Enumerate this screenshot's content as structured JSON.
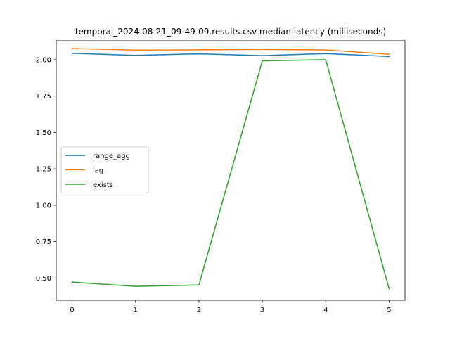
{
  "chart_data": {
    "type": "line",
    "title": "temporal_2024-08-21_09-49-09.results.csv median latency (milliseconds)",
    "xlabel": "",
    "ylabel": "",
    "x": [
      0,
      1,
      2,
      3,
      4,
      5
    ],
    "xticks": [
      "0",
      "1",
      "2",
      "3",
      "4",
      "5"
    ],
    "yticks": [
      "0.50",
      "0.75",
      "1.00",
      "1.25",
      "1.50",
      "1.75",
      "2.00"
    ],
    "xlim": [
      -0.25,
      5.25
    ],
    "ylim": [
      0.347,
      2.13
    ],
    "grid": false,
    "legend_position": "center-left",
    "series": [
      {
        "name": "range_agg",
        "color": "#1f77b4",
        "values": [
          2.044,
          2.03,
          2.04,
          2.028,
          2.042,
          2.022
        ]
      },
      {
        "name": "lag",
        "color": "#ff7f0e",
        "values": [
          2.077,
          2.066,
          2.068,
          2.07,
          2.067,
          2.038
        ]
      },
      {
        "name": "exists",
        "color": "#2ca02c",
        "values": [
          0.472,
          0.443,
          0.452,
          1.992,
          2.0,
          0.425
        ]
      }
    ]
  }
}
